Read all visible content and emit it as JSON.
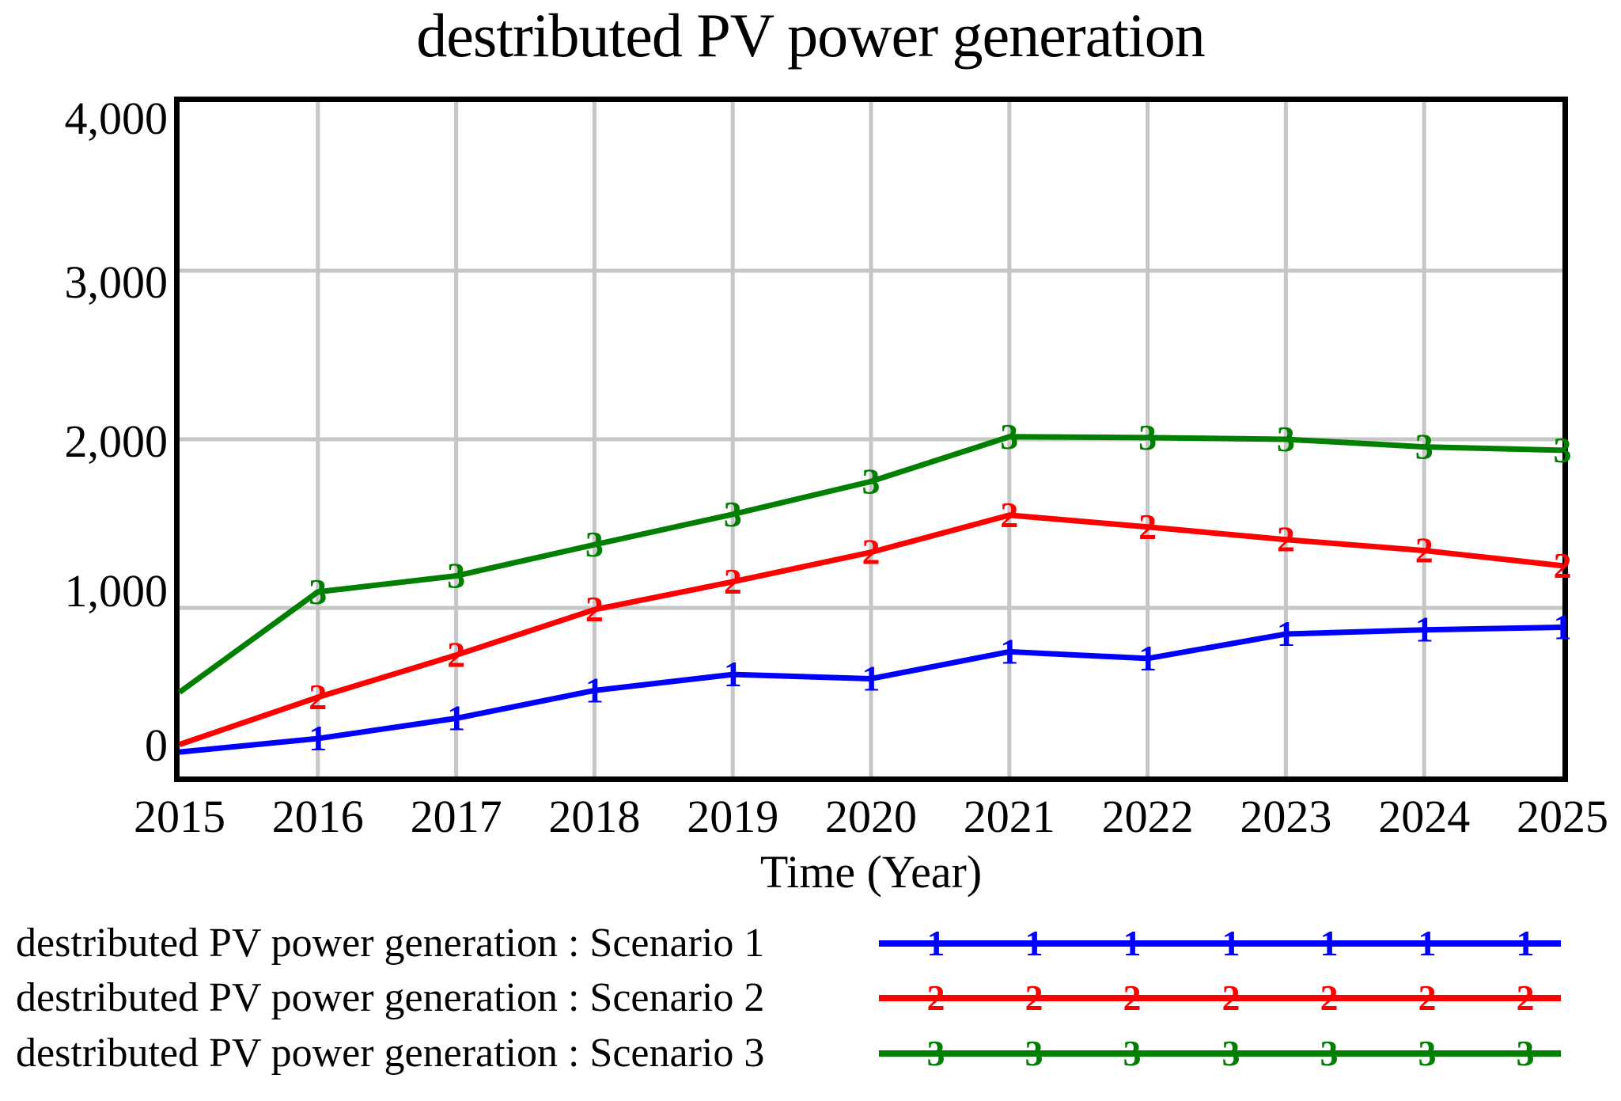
{
  "title": "destributed PV power generation",
  "axes": {
    "x_label": "Time (Year)",
    "y_ticks": [
      {
        "label": "4,000",
        "value": 4000,
        "dy": 21
      },
      {
        "label": "3,000",
        "value": 3000,
        "dy": 15
      },
      {
        "label": "2,000",
        "value": 2000,
        "dy": 3
      },
      {
        "label": "1,000",
        "value": 1000,
        "dy": -21
      },
      {
        "label": "0",
        "value": 0,
        "dy": -39
      }
    ],
    "x_ticks": [
      "2015",
      "2016",
      "2017",
      "2018",
      "2019",
      "2020",
      "2021",
      "2022",
      "2023",
      "2024",
      "2025"
    ]
  },
  "colors": {
    "scenario1": "#0000FF",
    "scenario2": "#FF0000",
    "scenario3": "#007F00",
    "gridline": "#C6C6C6",
    "frame": "#000000",
    "text": "#000000"
  },
  "chart_data": {
    "type": "line",
    "title": "destributed PV power generation",
    "xlabel": "Time (Year)",
    "ylabel": "",
    "xlim": [
      2015,
      2025
    ],
    "ylim": [
      0,
      4000
    ],
    "grid": true,
    "legend_position": "bottom-left",
    "x": [
      2015,
      2016,
      2017,
      2018,
      2019,
      2020,
      2021,
      2022,
      2023,
      2024,
      2025
    ],
    "series": [
      {
        "name": "destributed PV power generation : Scenario 1",
        "marker": "1",
        "color": "#0000FF",
        "values": [
          145,
          225,
          345,
          510,
          605,
          580,
          740,
          700,
          845,
          870,
          885
        ]
      },
      {
        "name": "destributed PV power generation : Scenario 2",
        "marker": "2",
        "color": "#FF0000",
        "values": [
          190,
          470,
          720,
          990,
          1155,
          1330,
          1550,
          1480,
          1405,
          1340,
          1250
        ]
      },
      {
        "name": "destributed PV power generation : Scenario 3",
        "marker": "3",
        "color": "#007F00",
        "values": [
          500,
          1095,
          1190,
          1375,
          1555,
          1750,
          2015,
          2010,
          2000,
          1955,
          1935
        ]
      }
    ]
  },
  "legend": [
    {
      "label": "destributed PV power generation : Scenario 1",
      "marker": "1",
      "color": "#0000FF"
    },
    {
      "label": "destributed PV power generation : Scenario 2",
      "marker": "2",
      "color": "#FF0000"
    },
    {
      "label": "destributed PV power generation : Scenario 3",
      "marker": "3",
      "color": "#007F00"
    }
  ]
}
